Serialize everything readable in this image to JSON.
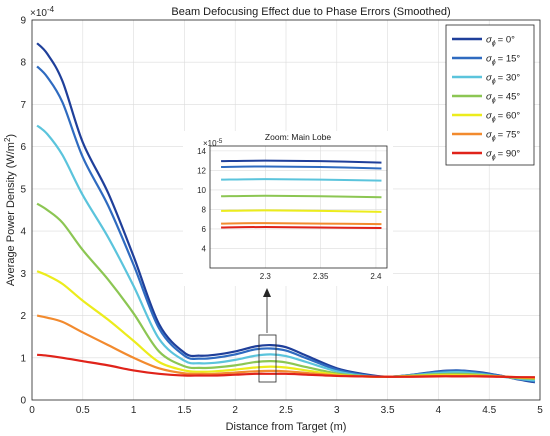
{
  "chart_data": {
    "type": "line",
    "title": "Beam Defocusing Effect due to Phase Errors (Smoothed)",
    "xlabel": "Distance from Target (m)",
    "ylabel_main": "Average Power Density (W/m",
    "ylabel_sup": "2",
    "ylabel_close": ")",
    "y_exponent_label": "×10",
    "y_exponent": "-4",
    "xlim": [
      0,
      5
    ],
    "ylim": [
      0,
      9
    ],
    "x_ticks": [
      "0",
      "0.5",
      "1",
      "1.5",
      "2",
      "2.5",
      "3",
      "3.5",
      "4",
      "4.5",
      "5"
    ],
    "y_ticks": [
      "0",
      "1",
      "2",
      "3",
      "4",
      "5",
      "6",
      "7",
      "8",
      "9"
    ],
    "grid": true,
    "legend_position": "top-right",
    "legend_symbol": "σ",
    "legend_sub": "ϕ",
    "x": [
      0.05,
      0.15,
      0.3,
      0.5,
      0.75,
      1.0,
      1.25,
      1.5,
      1.65,
      1.8,
      2.0,
      2.2,
      2.35,
      2.5,
      2.7,
      3.0,
      3.25,
      3.5,
      3.75,
      4.0,
      4.2,
      4.4,
      4.6,
      4.8,
      4.95
    ],
    "series": [
      {
        "name": "= 0°",
        "color": "#1f3f9a",
        "values": [
          8.45,
          8.2,
          7.55,
          6.1,
          4.9,
          3.4,
          1.8,
          1.12,
          1.05,
          1.07,
          1.15,
          1.27,
          1.3,
          1.25,
          1.05,
          0.75,
          0.62,
          0.55,
          0.6,
          0.68,
          0.7,
          0.66,
          0.58,
          0.48,
          0.42
        ]
      },
      {
        "name": "= 15°",
        "color": "#2f6bc0",
        "values": [
          7.9,
          7.65,
          7.05,
          5.75,
          4.6,
          3.2,
          1.7,
          1.05,
          0.98,
          1.0,
          1.08,
          1.2,
          1.22,
          1.17,
          0.99,
          0.72,
          0.6,
          0.55,
          0.6,
          0.67,
          0.7,
          0.65,
          0.58,
          0.49,
          0.44
        ]
      },
      {
        "name": "= 30°",
        "color": "#5bc4dc",
        "values": [
          6.5,
          6.3,
          5.8,
          4.85,
          3.85,
          2.7,
          1.45,
          0.93,
          0.87,
          0.88,
          0.95,
          1.05,
          1.08,
          1.04,
          0.9,
          0.68,
          0.58,
          0.55,
          0.59,
          0.64,
          0.66,
          0.62,
          0.56,
          0.5,
          0.46
        ]
      },
      {
        "name": "= 45°",
        "color": "#8cc653",
        "values": [
          4.65,
          4.5,
          4.2,
          3.55,
          2.85,
          2.05,
          1.15,
          0.8,
          0.76,
          0.77,
          0.82,
          0.9,
          0.92,
          0.89,
          0.78,
          0.63,
          0.57,
          0.55,
          0.58,
          0.61,
          0.62,
          0.6,
          0.56,
          0.52,
          0.5
        ]
      },
      {
        "name": "= 60°",
        "color": "#ecec1c",
        "values": [
          3.05,
          2.95,
          2.75,
          2.35,
          1.9,
          1.4,
          0.9,
          0.7,
          0.67,
          0.68,
          0.72,
          0.77,
          0.79,
          0.77,
          0.7,
          0.6,
          0.56,
          0.55,
          0.57,
          0.59,
          0.59,
          0.58,
          0.56,
          0.53,
          0.52
        ]
      },
      {
        "name": "= 75°",
        "color": "#f28a2e",
        "values": [
          2.0,
          1.95,
          1.85,
          1.6,
          1.3,
          1.0,
          0.75,
          0.63,
          0.62,
          0.62,
          0.65,
          0.68,
          0.69,
          0.68,
          0.64,
          0.58,
          0.56,
          0.55,
          0.56,
          0.57,
          0.57,
          0.57,
          0.56,
          0.54,
          0.53
        ]
      },
      {
        "name": "= 90°",
        "color": "#e0231a",
        "values": [
          1.07,
          1.05,
          1.0,
          0.92,
          0.82,
          0.7,
          0.62,
          0.58,
          0.58,
          0.58,
          0.6,
          0.62,
          0.62,
          0.62,
          0.6,
          0.57,
          0.56,
          0.55,
          0.55,
          0.56,
          0.56,
          0.56,
          0.55,
          0.54,
          0.54
        ]
      }
    ],
    "inset": {
      "title": "Zoom: Main Lobe",
      "y_exponent_label": "×10",
      "y_exponent": "-5",
      "xlim": [
        2.25,
        2.41
      ],
      "ylim": [
        2,
        14.5
      ],
      "x_ticks": [
        "2.3",
        "2.35",
        "2.4"
      ],
      "y_ticks": [
        "4",
        "6",
        "8",
        "10",
        "12",
        "14"
      ],
      "series_values": [
        [
          12.95,
          13.0,
          12.95,
          12.8
        ],
        [
          12.35,
          12.4,
          12.35,
          12.2
        ],
        [
          11.05,
          11.1,
          11.05,
          10.95
        ],
        [
          9.35,
          9.4,
          9.35,
          9.25
        ],
        [
          7.85,
          7.9,
          7.85,
          7.75
        ],
        [
          6.55,
          6.6,
          6.55,
          6.5
        ],
        [
          6.15,
          6.2,
          6.15,
          6.1
        ]
      ],
      "x": [
        2.26,
        2.3,
        2.35,
        2.405
      ]
    }
  }
}
